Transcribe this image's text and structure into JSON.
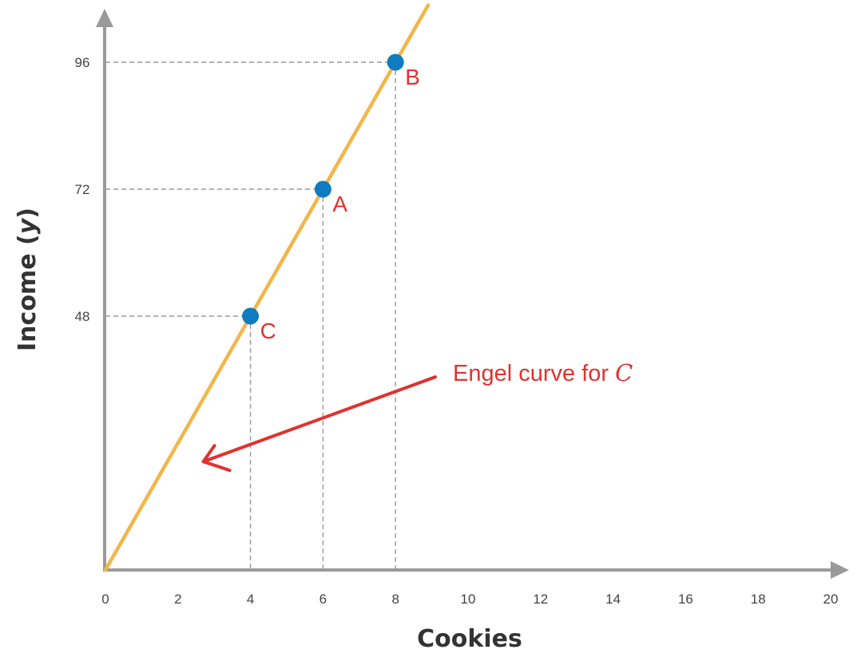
{
  "chart_data": {
    "type": "line",
    "xlabel": "Cookies",
    "ylabel_prefix": "Income (",
    "ylabel_var": "y",
    "ylabel_suffix": ")",
    "xlim": [
      0,
      20
    ],
    "ylim": [
      0,
      124
    ],
    "x_ticks": [
      0,
      2,
      4,
      6,
      8,
      10,
      12,
      14,
      16,
      18,
      20
    ],
    "y_ticks": [
      48,
      72,
      96
    ],
    "grid": false,
    "series": [
      {
        "x": [
          0,
          8.9
        ],
        "y": [
          0,
          106.8
        ],
        "color": "#f3b54a"
      }
    ],
    "points": [
      {
        "label": "C",
        "x": 4,
        "y": 48
      },
      {
        "label": "A",
        "x": 6,
        "y": 72
      },
      {
        "label": "B",
        "x": 8,
        "y": 96
      }
    ],
    "point_color": "#0f7bc0",
    "annotation": {
      "text": "Engel curve for ",
      "var": "C",
      "color": "#e0322f",
      "arrow_from": [
        9.1,
        36.5
      ],
      "arrow_to": [
        2.7,
        20.5
      ]
    },
    "axis_color": "#9a9a9a",
    "guide_color": "#9a9a9a"
  }
}
